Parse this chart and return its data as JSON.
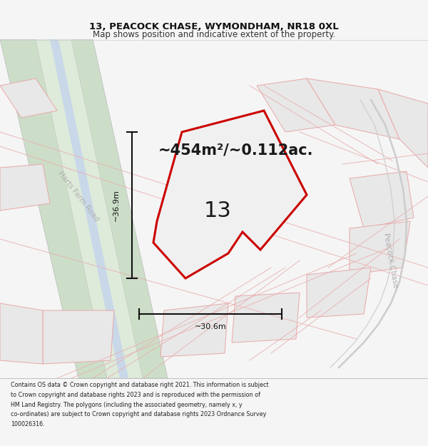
{
  "title_line1": "13, PEACOCK CHASE, WYMONDHAM, NR18 0XL",
  "title_line2": "Map shows position and indicative extent of the property.",
  "area_text": "~454m²/~0.112ac.",
  "label_number": "13",
  "dim_height": "~36.9m",
  "dim_width": "~30.6m",
  "road_label_1": "Harts Farm Road",
  "road_label_2": "Peacock Chase",
  "footer_lines": [
    "Contains OS data © Crown copyright and database right 2021. This information is subject",
    "to Crown copyright and database rights 2023 and is reproduced with the permission of",
    "HM Land Registry. The polygons (including the associated geometry, namely x, y",
    "co-ordinates) are subject to Crown copyright and database rights 2023 Ordnance Survey",
    "100026316."
  ],
  "bg_color": "#f5f5f5",
  "map_bg": "#ffffff",
  "road_fill_green": "#ccdec8",
  "road_fill_inner": "#deeada",
  "road_blue_stripe": "#c8d8e8",
  "parcel_fill": "#e8e8e8",
  "parcel_stroke": "#e8a8a8",
  "highlight_fill": "#f0f0f0",
  "highlight_stroke": "#cc0000",
  "dim_color": "#111111",
  "text_color": "#1a1a1a",
  "road_text_color": "#b0b0b0",
  "footer_color": "#222222"
}
